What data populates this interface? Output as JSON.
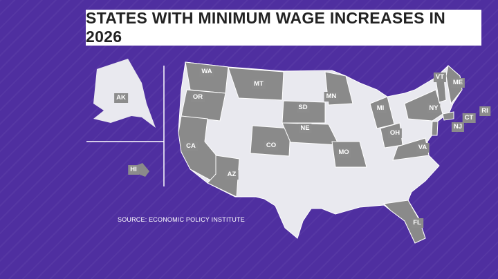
{
  "title": "STATES WITH MINIMUM WAGE INCREASES IN 2026",
  "source": "SOURCE: ECONOMIC POLICY INSTITUTE",
  "states": [
    "WA",
    "OR",
    "CA",
    "AZ",
    "MT",
    "CO",
    "SD",
    "NE",
    "MN",
    "MO",
    "MI",
    "OH",
    "VA",
    "NY",
    "VT",
    "ME",
    "RI",
    "CT",
    "NJ",
    "FL",
    "AK",
    "HI"
  ]
}
